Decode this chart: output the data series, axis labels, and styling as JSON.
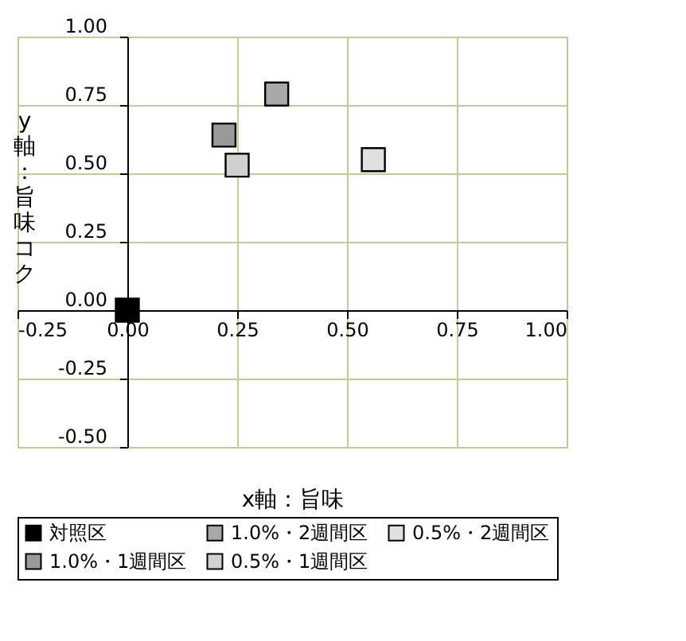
{
  "chart_data": {
    "type": "scatter",
    "xlabel": "x軸：旨味",
    "ylabel": "y軸：旨味コク",
    "xlim": [
      -0.25,
      1.0
    ],
    "xticks": [
      {
        "value": -0.25,
        "label": "-0.25"
      },
      {
        "value": 0,
        "label": "0.00"
      },
      {
        "value": 0.25,
        "label": "0.25"
      },
      {
        "value": 0.5,
        "label": "0.50"
      },
      {
        "value": 0.75,
        "label": "0.75"
      },
      {
        "value": 1.0,
        "label": "1.00"
      }
    ],
    "ylim": [
      -0.5,
      1.0
    ],
    "yticks": [
      {
        "value": -0.5,
        "label": "-0.50"
      },
      {
        "value": -0.25,
        "label": "-0.25"
      },
      {
        "value": 0,
        "label": "0.00"
      },
      {
        "value": 0.25,
        "label": "0.25"
      },
      {
        "value": 0.5,
        "label": "0.50"
      },
      {
        "value": 0.75,
        "label": "0.75"
      },
      {
        "value": 1.0,
        "label": "1.00"
      }
    ],
    "grid": true,
    "legend": "bottom",
    "marker": "square",
    "series": [
      {
        "name": "対照区",
        "color": "#000000",
        "x": [
          0
        ],
        "values": [
          0
        ]
      },
      {
        "name": "1.0%・2週間区",
        "color": "#a8a8a8",
        "x": [
          0.34
        ],
        "values": [
          0.79
        ]
      },
      {
        "name": "0.5%・2週間区",
        "color": "#e0e0e0",
        "x": [
          0.56
        ],
        "values": [
          0.55
        ]
      },
      {
        "name": "1.0%・1週間区",
        "color": "#999999",
        "x": [
          0.22
        ],
        "values": [
          0.64
        ]
      },
      {
        "name": "0.5%・1週間区",
        "color": "#d0d0d0",
        "x": [
          0.25
        ],
        "values": [
          0.53
        ]
      }
    ]
  }
}
